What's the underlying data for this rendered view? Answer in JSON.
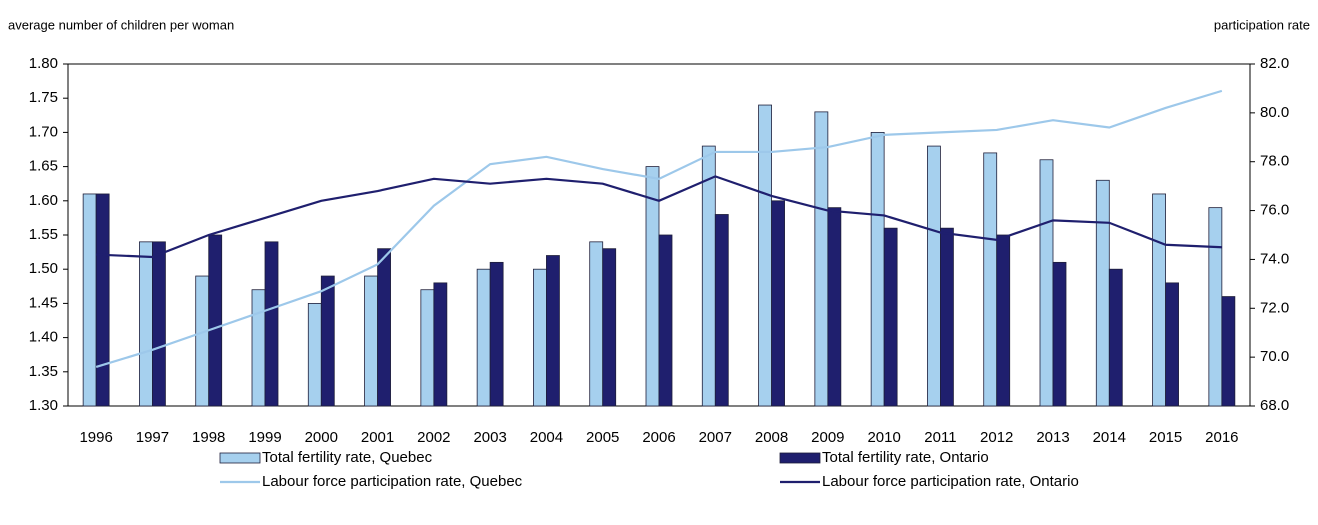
{
  "chart_data": {
    "type": "bar-line",
    "ylabel": "average number of children per woman",
    "y2label": "participation rate",
    "categories": [
      "1996",
      "1997",
      "1998",
      "1999",
      "2000",
      "2001",
      "2002",
      "2003",
      "2004",
      "2005",
      "2006",
      "2007",
      "2008",
      "2009",
      "2010",
      "2011",
      "2012",
      "2013",
      "2014",
      "2015",
      "2016"
    ],
    "series": [
      {
        "name": "Total fertility rate, Quebec",
        "type": "bar",
        "color": "#a6d0ee",
        "values": [
          1.61,
          1.54,
          1.49,
          1.47,
          1.45,
          1.49,
          1.47,
          1.5,
          1.5,
          1.54,
          1.65,
          1.68,
          1.74,
          1.73,
          1.7,
          1.68,
          1.67,
          1.66,
          1.63,
          1.61,
          1.59
        ]
      },
      {
        "name": "Total fertility rate, Ontario",
        "type": "bar",
        "color": "#1f1f6e",
        "values": [
          1.61,
          1.54,
          1.55,
          1.54,
          1.49,
          1.53,
          1.48,
          1.51,
          1.52,
          1.53,
          1.55,
          1.58,
          1.6,
          1.59,
          1.56,
          1.56,
          1.55,
          1.51,
          1.5,
          1.48,
          1.46
        ]
      },
      {
        "name": "Labour force participation rate, Quebec",
        "type": "line",
        "axis": "y2",
        "color": "#9dc8ea",
        "values": [
          69.6,
          70.3,
          71.1,
          71.9,
          72.7,
          73.8,
          76.2,
          77.9,
          78.2,
          77.7,
          77.3,
          78.4,
          78.4,
          78.6,
          79.1,
          79.2,
          79.3,
          79.7,
          79.4,
          80.2,
          80.9
        ]
      },
      {
        "name": "Labour force participation rate, Ontario",
        "type": "line",
        "axis": "y2",
        "color": "#1f1f6e",
        "values": [
          74.2,
          74.1,
          75.0,
          75.7,
          76.4,
          76.8,
          77.3,
          77.1,
          77.3,
          77.1,
          76.4,
          77.4,
          76.6,
          76.0,
          75.8,
          75.1,
          74.8,
          75.6,
          75.5,
          74.6,
          74.5
        ]
      }
    ],
    "ylim": [
      1.3,
      1.8
    ],
    "yticks": [
      {
        "value": 1.3,
        "label": "1.30"
      },
      {
        "value": 1.35,
        "label": "1.35"
      },
      {
        "value": 1.4,
        "label": "1.40"
      },
      {
        "value": 1.45,
        "label": "1.45"
      },
      {
        "value": 1.5,
        "label": "1.50"
      },
      {
        "value": 1.55,
        "label": "1.55"
      },
      {
        "value": 1.6,
        "label": "1.60"
      },
      {
        "value": 1.65,
        "label": "1.65"
      },
      {
        "value": 1.7,
        "label": "1.70"
      },
      {
        "value": 1.75,
        "label": "1.75"
      },
      {
        "value": 1.8,
        "label": "1.80"
      }
    ],
    "y2lim": [
      68,
      82
    ],
    "y2ticks": [
      {
        "value": 68,
        "label": "68.0"
      },
      {
        "value": 70,
        "label": "70.0"
      },
      {
        "value": 72,
        "label": "72.0"
      },
      {
        "value": 74,
        "label": "74.0"
      },
      {
        "value": 76,
        "label": "76.0"
      },
      {
        "value": 78,
        "label": "78.0"
      },
      {
        "value": 80,
        "label": "80.0"
      },
      {
        "value": 82,
        "label": "82.0"
      }
    ]
  }
}
